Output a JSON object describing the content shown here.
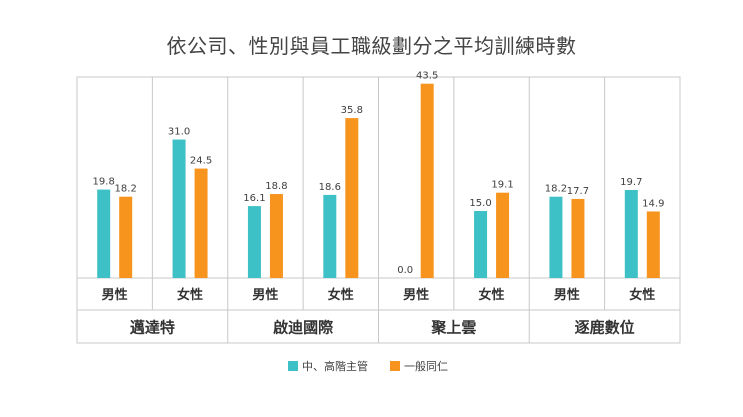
{
  "chart_data": {
    "type": "bar",
    "title": "依公司、性別與員工職級劃分之平均訓練時數",
    "groups": [
      "邁達特",
      "啟迪國際",
      "聚上雲",
      "逐鹿數位"
    ],
    "subcategories": [
      "男性",
      "女性"
    ],
    "categories": [
      "邁達特 男性",
      "邁達特 女性",
      "啟迪國際 男性",
      "啟迪國際 女性",
      "聚上雲 男性",
      "聚上雲 女性",
      "逐鹿數位 男性",
      "逐鹿數位 女性"
    ],
    "series": [
      {
        "name": "中、高階主管",
        "color": "#3ec1c6",
        "values": [
          19.8,
          31.0,
          16.1,
          18.6,
          0.0,
          15.0,
          18.2,
          19.7
        ]
      },
      {
        "name": "一般同仁",
        "color": "#f7941d",
        "values": [
          18.2,
          24.5,
          18.8,
          35.8,
          43.5,
          19.1,
          17.7,
          14.9
        ]
      }
    ],
    "ylim": [
      0,
      45
    ],
    "value_labels": true,
    "grid": false,
    "legend": "bottom-center"
  }
}
